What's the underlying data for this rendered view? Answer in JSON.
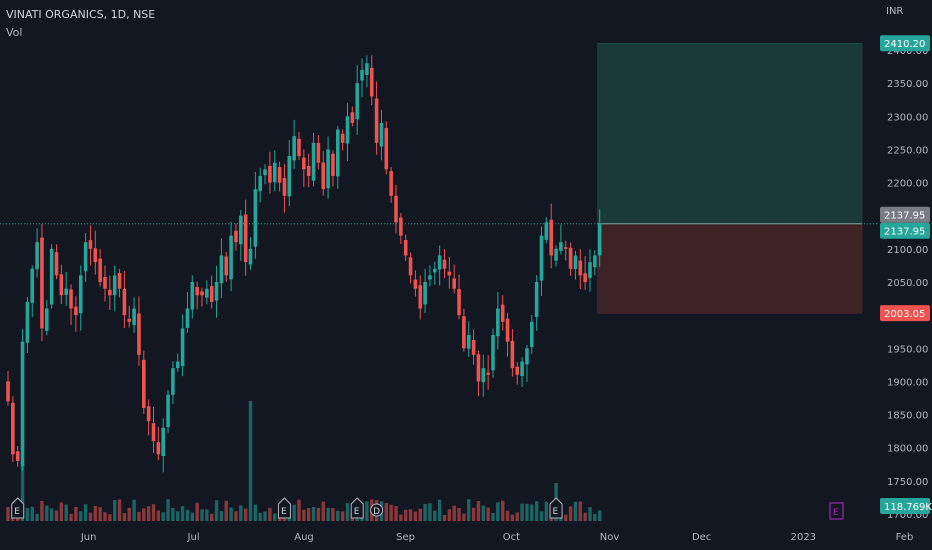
{
  "header": {
    "title": "VINATI ORGANICS, 1D, NSE",
    "vol_label": "Vol",
    "currency": "INR"
  },
  "colors": {
    "up": "#26a69a",
    "down": "#ef5350",
    "background": "#131722",
    "axis_text": "#b2b5be",
    "target_zone": "#1a3a3a",
    "stop_zone": "#3d2226"
  },
  "chart_data": {
    "type": "candlestick",
    "title": "VINATI ORGANICS, 1D, NSE",
    "yaxis_unit": "INR",
    "ylim": [
      1690,
      2420
    ],
    "y_ticks": [
      1700,
      1750,
      1800,
      1850,
      1900,
      1950,
      2000,
      2050,
      2100,
      2150,
      2200,
      2250,
      2300,
      2350,
      2400
    ],
    "y_tick_labels": [
      "1700.00",
      "1750.00",
      "1800.00",
      "1850.00",
      "1900.00",
      "1950.00",
      "2000.00",
      "2050.00",
      "2100.00",
      "2150.00",
      "2200.00",
      "2250.00",
      "2300.00",
      "2350.00",
      "2400.00"
    ],
    "x_tick_labels": [
      "Jun",
      "Jul",
      "Aug",
      "Sep",
      "Oct",
      "Nov",
      "Dec",
      "2023",
      "Feb"
    ],
    "x_tick_trading_day_index": [
      17,
      39,
      61,
      82,
      104,
      124,
      143,
      164,
      185
    ],
    "series_close": [
      1870,
      1790,
      1780,
      1960,
      2020,
      2070,
      2110,
      1980,
      2010,
      2100,
      2060,
      2030,
      2040,
      2010,
      2000,
      2060,
      2110,
      2100,
      2080,
      2050,
      2040,
      2030,
      2060,
      2040,
      2000,
      1990,
      2010,
      1940,
      1860,
      1840,
      1810,
      1790,
      1830,
      1880,
      1920,
      1930,
      1980,
      2010,
      2050,
      2030,
      2030,
      2040,
      2020,
      2050,
      2090,
      2060,
      2120,
      2110,
      2150,
      2080,
      2100,
      2190,
      2210,
      2220,
      2200,
      2230,
      2200,
      2180,
      2240,
      2270,
      2240,
      2220,
      2210,
      2260,
      2230,
      2190,
      2250,
      2210,
      2280,
      2260,
      2300,
      2290,
      2350,
      2370,
      2380,
      2330,
      2260,
      2290,
      2220,
      2180,
      2140,
      2120,
      2090,
      2060,
      2040,
      2010,
      2050,
      2060,
      2070,
      2090,
      2070,
      2060,
      2040,
      2000,
      1950,
      1970,
      1940,
      1900,
      1920,
      1910,
      1970,
      2010,
      1990,
      1960,
      1920,
      1910,
      1930,
      1950,
      1990,
      2050,
      2120,
      2140,
      2090,
      2100,
      2110,
      2100,
      2070,
      2090,
      2060,
      2050,
      2080,
      2090,
      2138
    ],
    "volume_last": "118.769K",
    "position_tool": {
      "entry": 2137.95,
      "target": 2410.2,
      "stop": 2003.05,
      "labels": [
        "2410.20",
        "2137.95",
        "2137.95",
        "2003.05",
        "118.769K"
      ]
    },
    "event_markers": [
      "E",
      "E",
      "E",
      "D",
      "E",
      "E"
    ],
    "grid": false,
    "legend": "none"
  }
}
